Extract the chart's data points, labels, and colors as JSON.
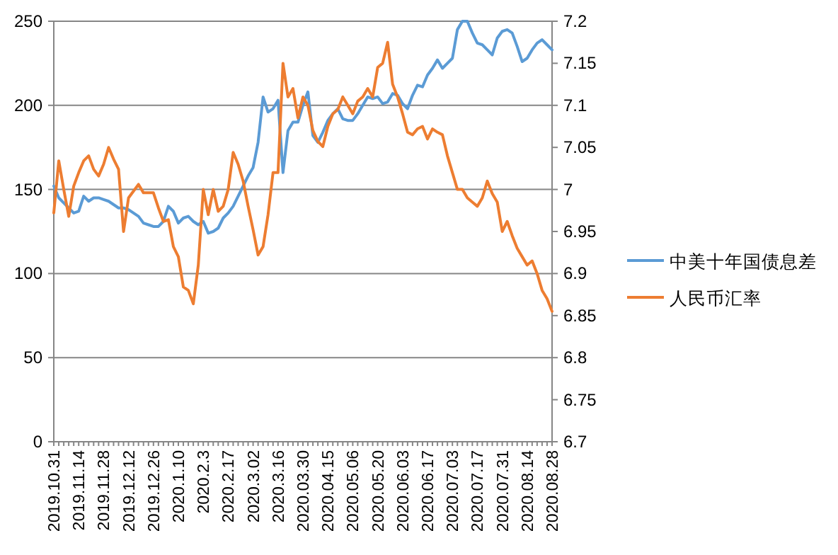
{
  "chart_data": {
    "type": "line",
    "categories": [
      "2019.10.31",
      null,
      null,
      null,
      null,
      "2019.11.14",
      null,
      null,
      null,
      null,
      "2019.11.28",
      null,
      null,
      null,
      null,
      "2019.12.12",
      null,
      null,
      null,
      null,
      "2019.12.26",
      null,
      null,
      null,
      null,
      "2020.1.10",
      null,
      null,
      null,
      null,
      "2020.2.3",
      null,
      null,
      null,
      null,
      "2020.2.17",
      null,
      null,
      null,
      null,
      "2020.3.02",
      null,
      null,
      null,
      null,
      "2020.3.16",
      null,
      null,
      null,
      null,
      "2020.03.30",
      null,
      null,
      null,
      null,
      "2020.04.15",
      null,
      null,
      null,
      null,
      "2020.05.06",
      null,
      null,
      null,
      null,
      "2020.05.20",
      null,
      null,
      null,
      null,
      "2020.06.03",
      null,
      null,
      null,
      null,
      "2020.06.17",
      null,
      null,
      null,
      null,
      "2020.07.03",
      null,
      null,
      null,
      null,
      "2020.07.17",
      null,
      null,
      null,
      null,
      "2020.07.31",
      null,
      null,
      null,
      null,
      "2020.08.14",
      null,
      null,
      null,
      null,
      "2020.08.28"
    ],
    "series": [
      {
        "name": "中美十年国债息差",
        "color": "#5b9bd5",
        "values": [
          152,
          145,
          142,
          139,
          136,
          137,
          146,
          143,
          145,
          145,
          144,
          143,
          141,
          139,
          139,
          138,
          136,
          134,
          130,
          129,
          128,
          128,
          131,
          140,
          137,
          130,
          133,
          134,
          131,
          129,
          131,
          124,
          125,
          127,
          133,
          136,
          140,
          146,
          152,
          158,
          163,
          178,
          205,
          196,
          198,
          203,
          160,
          185,
          190,
          190,
          200,
          208,
          182,
          178,
          184,
          191,
          195,
          198,
          192,
          191,
          191,
          195,
          200,
          205,
          204,
          205,
          201,
          202,
          207,
          206,
          201,
          198,
          206,
          212,
          211,
          218,
          222,
          227,
          222,
          225,
          228,
          245,
          250,
          250,
          243,
          237,
          236,
          233,
          230,
          240,
          244,
          245,
          243,
          235,
          226,
          228,
          233,
          237,
          239,
          236,
          233
        ]
      },
      {
        "name": "人民币汇率",
        "color": "#ed7d31",
        "axis": "y2",
        "values": [
          6.972,
          7.034,
          7.0,
          6.968,
          7.004,
          7.02,
          7.034,
          7.04,
          7.024,
          7.016,
          7.03,
          7.05,
          7.036,
          7.024,
          6.95,
          6.99,
          6.998,
          7.006,
          6.996,
          6.996,
          6.996,
          6.978,
          6.962,
          6.964,
          6.932,
          6.92,
          6.884,
          6.88,
          6.864,
          6.91,
          7.0,
          6.97,
          7.0,
          6.974,
          6.98,
          7.0,
          7.044,
          7.03,
          7.01,
          6.98,
          6.952,
          6.922,
          6.932,
          6.97,
          7.02,
          7.02,
          7.15,
          7.11,
          7.12,
          7.085,
          7.11,
          7.1,
          7.07,
          7.057,
          7.051,
          7.075,
          7.09,
          7.095,
          7.11,
          7.1,
          7.09,
          7.105,
          7.11,
          7.12,
          7.11,
          7.145,
          7.15,
          7.175,
          7.125,
          7.11,
          7.09,
          7.068,
          7.065,
          7.072,
          7.075,
          7.06,
          7.072,
          7.068,
          7.065,
          7.04,
          7.02,
          7.0,
          7.0,
          6.99,
          6.985,
          6.98,
          6.99,
          7.01,
          6.995,
          6.985,
          6.95,
          6.962,
          6.945,
          6.93,
          6.92,
          6.91,
          6.915,
          6.9,
          6.88,
          6.87,
          6.855
        ]
      }
    ],
    "ylim": [
      0,
      250
    ],
    "yticks": [
      0,
      50,
      100,
      150,
      200,
      250
    ],
    "y2lim": [
      6.7,
      7.2
    ],
    "y2ticks": [
      6.7,
      6.75,
      6.8,
      6.85,
      6.9,
      6.95,
      7,
      7.05,
      7.1,
      7.15,
      7.2
    ],
    "grid": "y",
    "legend": "right"
  }
}
